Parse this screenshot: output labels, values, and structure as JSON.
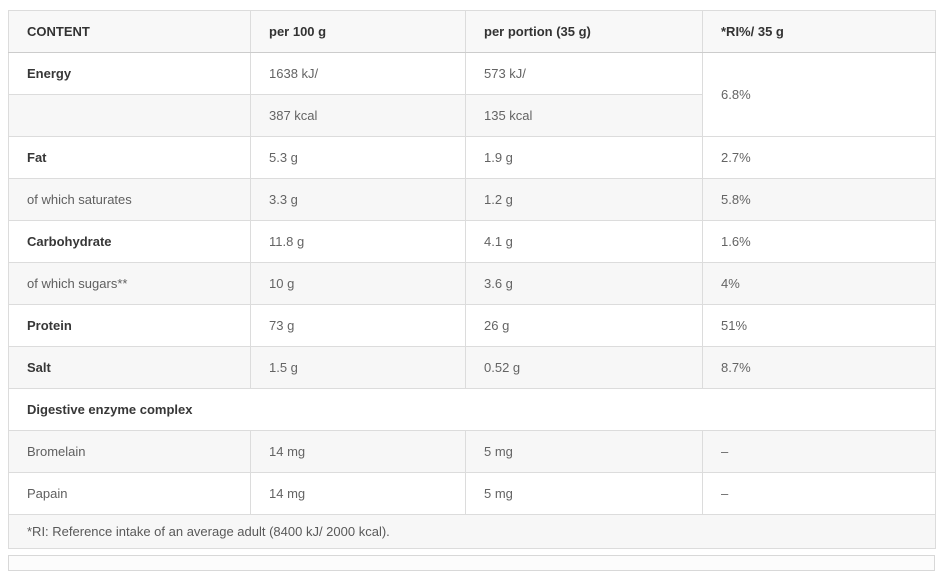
{
  "colors": {
    "row_shade": "#f7f7f7",
    "header_bg": "#f8f8f8",
    "border": "#dcdcdc",
    "label_text": "#373737",
    "value_text": "#646464"
  },
  "table": {
    "columns": [
      "CONTENT",
      "per 100 g",
      "per portion (35 g)",
      "*RI%/ 35 g"
    ],
    "rows": [
      {
        "label": "Energy",
        "bold": true,
        "per_100g": "1638 kJ/",
        "per_portion": "573 kJ/",
        "ri": "6.8%",
        "ri_rowspan": 2,
        "shade": false
      },
      {
        "label": "",
        "bold": false,
        "per_100g": "387 kcal",
        "per_portion": "135 kcal",
        "shade": true
      },
      {
        "label": "Fat",
        "bold": true,
        "per_100g": "5.3 g",
        "per_portion": "1.9 g",
        "ri": "2.7%",
        "shade": false
      },
      {
        "label": "of which saturates",
        "bold": false,
        "per_100g": "3.3 g",
        "per_portion": "1.2 g",
        "ri": "5.8%",
        "shade": true
      },
      {
        "label": "Carbohydrate",
        "bold": true,
        "per_100g": "11.8 g",
        "per_portion": "4.1 g",
        "ri": "1.6%",
        "shade": false
      },
      {
        "label": "of which sugars**",
        "bold": false,
        "per_100g": "10 g",
        "per_portion": "3.6 g",
        "ri": "4%",
        "shade": true
      },
      {
        "label": "Protein",
        "bold": true,
        "per_100g": "73 g",
        "per_portion": "26 g",
        "ri": "51%",
        "shade": false
      },
      {
        "label": "Salt",
        "bold": true,
        "per_100g": "1.5 g",
        "per_portion": "0.52 g",
        "ri": "8.7%",
        "shade": true
      },
      {
        "label": "Digestive enzyme complex",
        "bold": true,
        "section": true,
        "shade": false
      },
      {
        "label": "Bromelain",
        "bold": false,
        "per_100g": "14 mg",
        "per_portion": "5 mg",
        "ri": "–",
        "shade": true
      },
      {
        "label": "Papain",
        "bold": false,
        "per_100g": "14 mg",
        "per_portion": "5 mg",
        "ri": "–",
        "shade": false
      }
    ],
    "footnote": "*RI: Reference intake of an average adult (8400 kJ/ 2000 kcal)."
  }
}
